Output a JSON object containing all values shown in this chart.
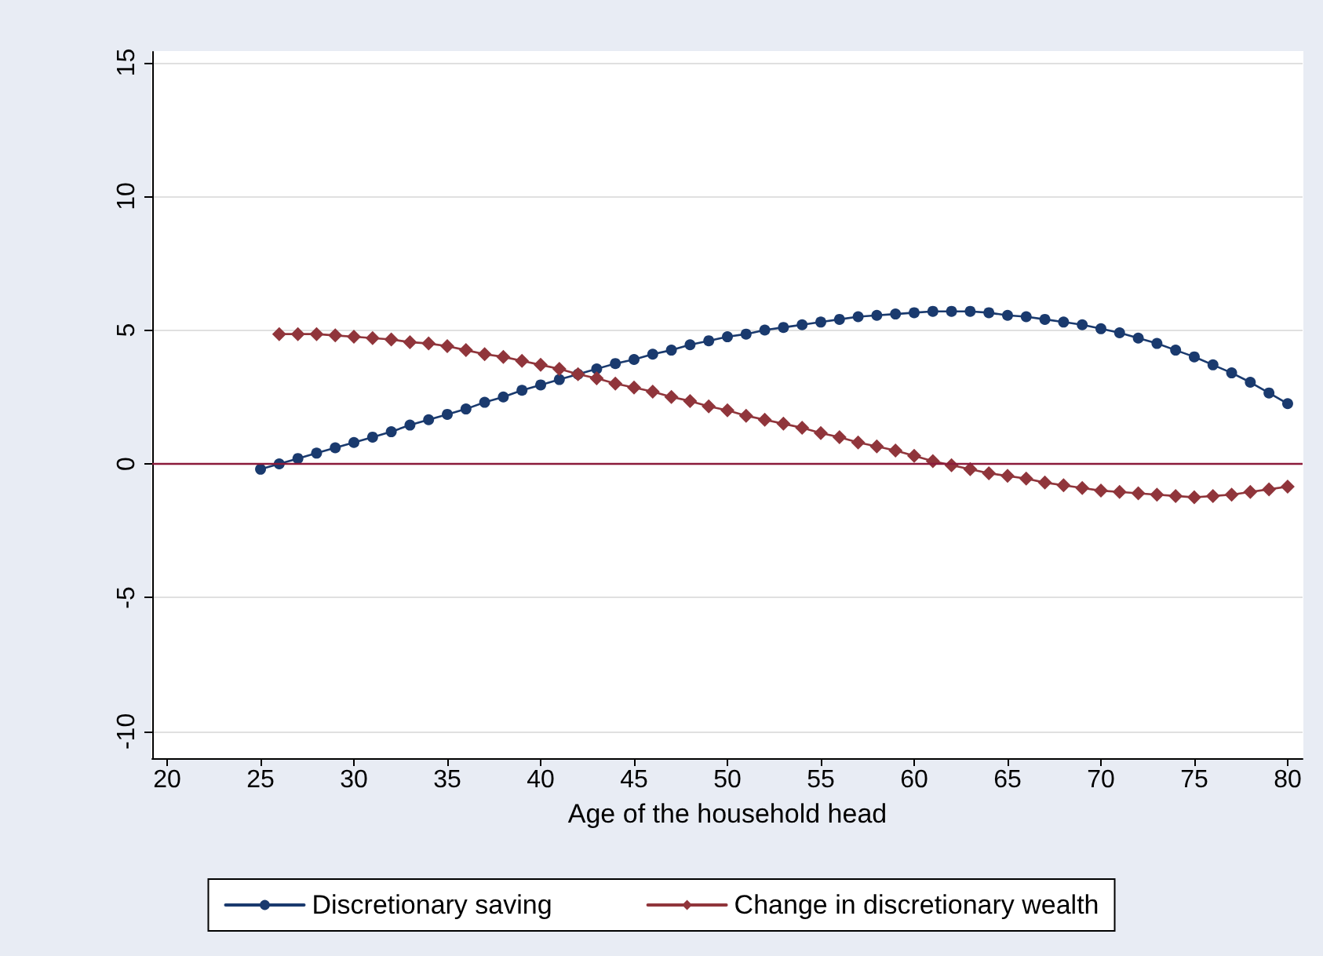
{
  "chart_data": {
    "type": "line",
    "xlabel": "Age of the household head",
    "xlim": [
      19.2,
      80.8
    ],
    "xticks": [
      20,
      25,
      30,
      35,
      40,
      45,
      50,
      55,
      60,
      65,
      70,
      75,
      80
    ],
    "ylim": [
      -11,
      15.4
    ],
    "yticks": [
      -10,
      -5,
      0,
      5,
      10,
      15
    ],
    "grid": "y",
    "legend": "bottom",
    "ref_lines": [
      {
        "axis": "y",
        "value": 0,
        "color": "#8b1a3a"
      }
    ],
    "series": [
      {
        "name": "Discretionary saving",
        "color": "#1a3a6e",
        "marker": "circle",
        "x": [
          25,
          26,
          27,
          28,
          29,
          30,
          31,
          32,
          33,
          34,
          35,
          36,
          37,
          38,
          39,
          40,
          41,
          42,
          43,
          44,
          45,
          46,
          47,
          48,
          49,
          50,
          51,
          52,
          53,
          54,
          55,
          56,
          57,
          58,
          59,
          60,
          61,
          62,
          63,
          64,
          65,
          66,
          67,
          68,
          69,
          70,
          71,
          72,
          73,
          74,
          75,
          76,
          77,
          78,
          79,
          80
        ],
        "values": [
          -0.2,
          0.0,
          0.2,
          0.4,
          0.6,
          0.8,
          1.0,
          1.2,
          1.45,
          1.65,
          1.85,
          2.05,
          2.3,
          2.5,
          2.75,
          2.95,
          3.15,
          3.35,
          3.55,
          3.75,
          3.9,
          4.1,
          4.25,
          4.45,
          4.6,
          4.75,
          4.85,
          5.0,
          5.1,
          5.2,
          5.3,
          5.4,
          5.5,
          5.55,
          5.6,
          5.65,
          5.7,
          5.7,
          5.7,
          5.65,
          5.55,
          5.5,
          5.4,
          5.3,
          5.2,
          5.05,
          4.9,
          4.7,
          4.5,
          4.25,
          4.0,
          3.7,
          3.4,
          3.05,
          2.65,
          2.25
        ]
      },
      {
        "name": "Change in discretionary wealth",
        "color": "#90353b",
        "marker": "diamond",
        "x": [
          26,
          27,
          28,
          29,
          30,
          31,
          32,
          33,
          34,
          35,
          36,
          37,
          38,
          39,
          40,
          41,
          42,
          43,
          44,
          45,
          46,
          47,
          48,
          49,
          50,
          51,
          52,
          53,
          54,
          55,
          56,
          57,
          58,
          59,
          60,
          61,
          62,
          63,
          64,
          65,
          66,
          67,
          68,
          69,
          70,
          71,
          72,
          73,
          74,
          75,
          76,
          77,
          78,
          79,
          80
        ],
        "values": [
          4.85,
          4.85,
          4.85,
          4.8,
          4.75,
          4.7,
          4.65,
          4.55,
          4.5,
          4.4,
          4.25,
          4.1,
          4.0,
          3.85,
          3.7,
          3.55,
          3.35,
          3.2,
          3.0,
          2.85,
          2.7,
          2.5,
          2.35,
          2.15,
          2.0,
          1.8,
          1.65,
          1.5,
          1.35,
          1.15,
          1.0,
          0.8,
          0.65,
          0.5,
          0.3,
          0.1,
          -0.05,
          -0.2,
          -0.35,
          -0.45,
          -0.55,
          -0.7,
          -0.8,
          -0.9,
          -1.0,
          -1.05,
          -1.1,
          -1.15,
          -1.2,
          -1.25,
          -1.2,
          -1.15,
          -1.05,
          -0.95,
          -0.85
        ]
      }
    ]
  }
}
